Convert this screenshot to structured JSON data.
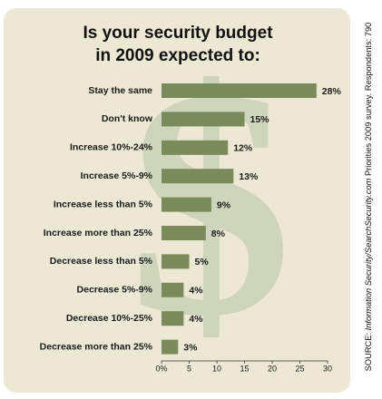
{
  "chart_data": {
    "type": "barh",
    "title": [
      "Is your security budget",
      "in 2009 expected to:"
    ],
    "categories": [
      "Stay the same",
      "Don't know",
      "Increase 10%-24%",
      "Increase 5%-9%",
      "Increase less than 5%",
      "Increase more than 25%",
      "Decrease less than 5%",
      "Decrease 5%-9%",
      "Decrease 10%-25%",
      "Decrease more than 25%"
    ],
    "values": [
      28,
      15,
      12,
      13,
      9,
      8,
      5,
      4,
      4,
      3
    ],
    "value_labels": [
      "28%",
      "15%",
      "12%",
      "13%",
      "9%",
      "8%",
      "5%",
      "4%",
      "4%",
      "3%"
    ],
    "color": "#7b8a5b",
    "xlim": [
      0,
      30
    ],
    "xticks": [
      {
        "value": 0,
        "label": "0%"
      },
      5,
      10,
      15,
      20,
      25,
      30
    ],
    "source": {
      "label": "SOURCE:",
      "publication": "Information Security/SearchSecurity.com",
      "text": "Priorities 2009 survey. Respondents: 790"
    }
  }
}
